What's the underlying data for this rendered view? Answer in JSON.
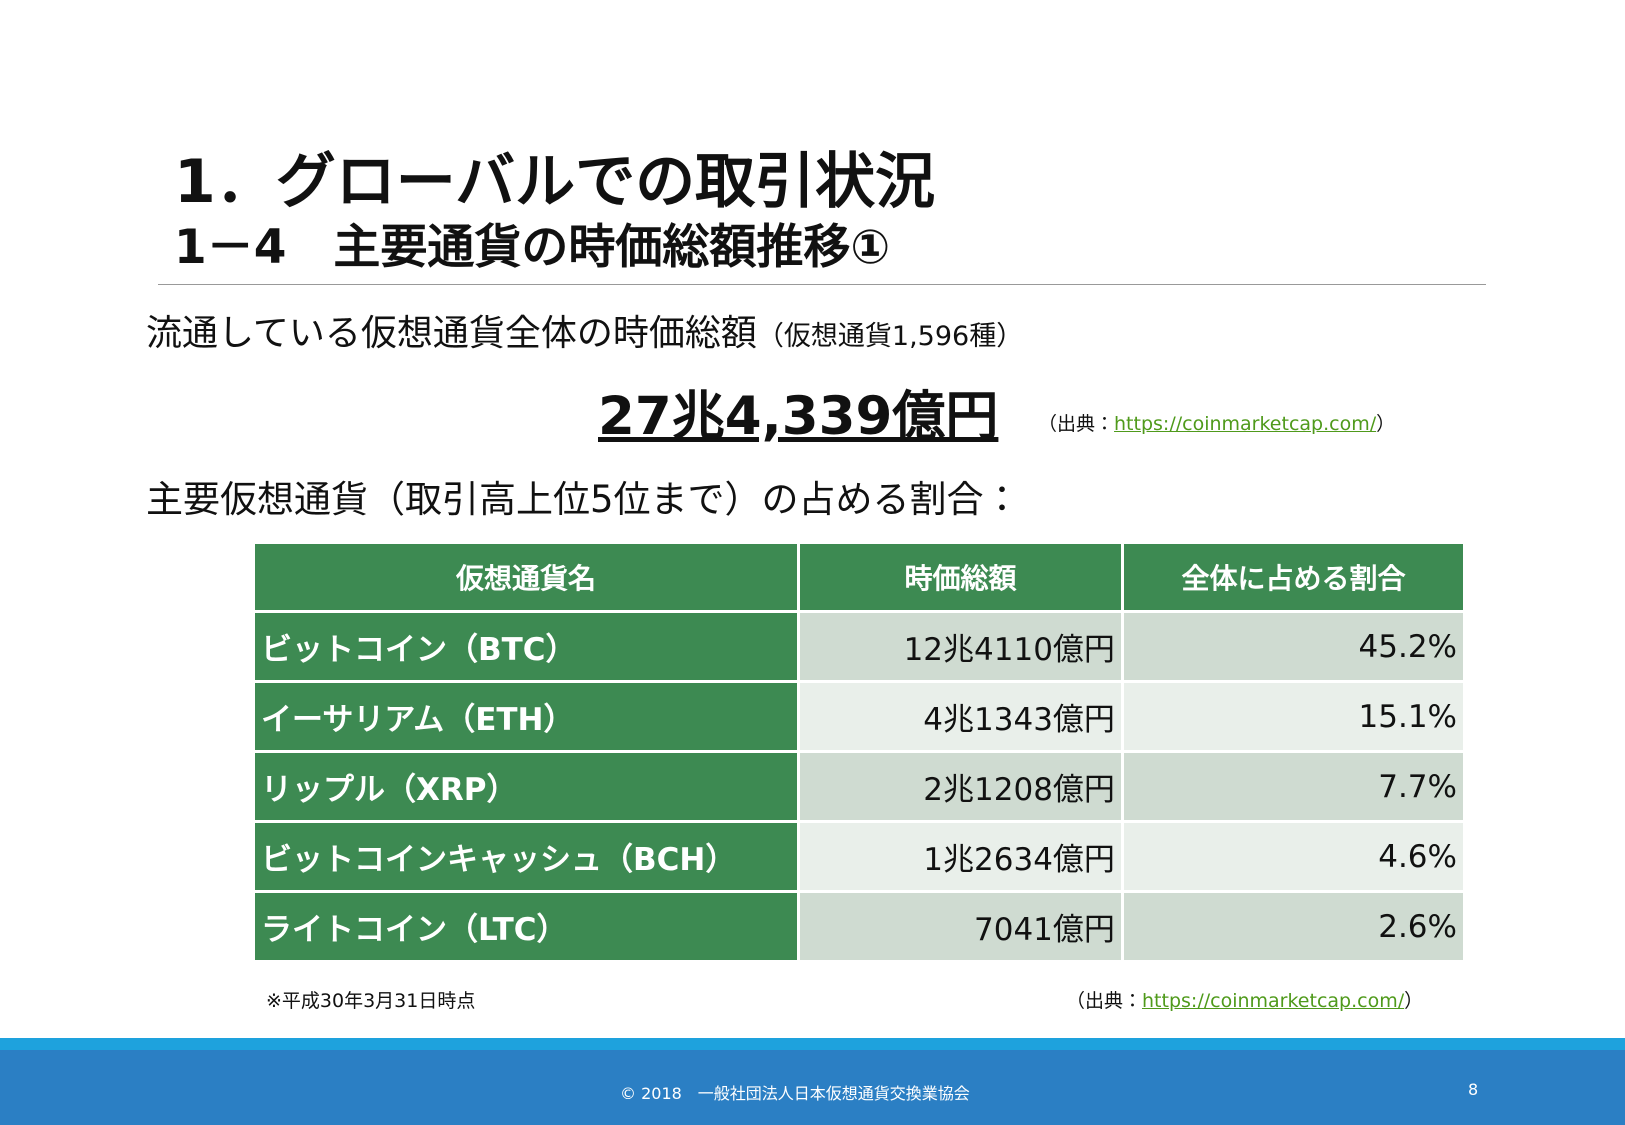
{
  "header": {
    "title": "1．グローバルでの取引状況",
    "subtitle": "1－4　主要通貨の時価総額推移①"
  },
  "summary": {
    "label": "流通している仮想通貨全体の時価総額",
    "note": "（仮想通貨1,596種）"
  },
  "total": {
    "value": "27兆4,339億円",
    "source_prefix": "（出典：",
    "source_link": "https://coinmarketcap.com/",
    "source_suffix": "）"
  },
  "section": {
    "label": "主要仮想通貨（取引高上位5位まで）の占める割合："
  },
  "table": {
    "columns": [
      "仮想通貨名",
      "時価総額",
      "全体に占める割合"
    ],
    "rows": [
      [
        "ビットコイン（BTC）",
        "12兆4110億円",
        "45.2%"
      ],
      [
        "イーサリアム（ETH）",
        "4兆1343億円",
        "15.1%"
      ],
      [
        "リップル（XRP）",
        "2兆1208億円",
        "7.7%"
      ],
      [
        "ビットコインキャッシュ（BCH）",
        "1兆2634億円",
        "4.6%"
      ],
      [
        "ライトコイン（LTC）",
        "7041億円",
        "2.6%"
      ]
    ]
  },
  "table_note": {
    "date": "※平成30年3月31日時点",
    "source_prefix": "（出典：",
    "source_link": "https://coinmarketcap.com/",
    "source_suffix": "）"
  },
  "footer": {
    "copyright": "© 2018　一般社団法人日本仮想通貨交換業協会",
    "page": "8"
  }
}
